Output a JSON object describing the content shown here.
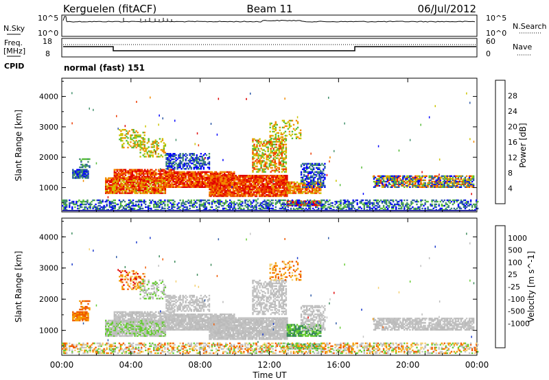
{
  "header": {
    "site": "Kerguelen (fitACF)",
    "beam": "Beam 11",
    "date": "06/Jul/2012"
  },
  "panels": {
    "nsky": {
      "left_label": "N.Sky",
      "right_label": "N.Search",
      "left_ticks": [
        "10^5",
        "10^0"
      ],
      "right_ticks": [
        "10^5",
        "10^0"
      ]
    },
    "freq": {
      "left_label_line1": "Freq.",
      "left_label_line2": "[MHz]",
      "right_label": "Nave",
      "left_ticks": [
        "18",
        "8"
      ],
      "right_ticks": [
        "60",
        "0"
      ]
    },
    "cpid": {
      "label": "CPID",
      "text": "normal (fast) 151"
    }
  },
  "colors": {
    "power": [
      "#0000ff",
      "#2e5aa8",
      "#3f8f6a",
      "#54bb36",
      "#ccc400",
      "#f28a00",
      "#ee3a00",
      "#e00000"
    ],
    "velocity": [
      "#e00000",
      "#f05a00",
      "#f49a00",
      "#f4d070",
      "#bbbbbb",
      "#c4c4c4",
      "#66cc33",
      "#3a8a5a",
      "#2e5aa8",
      "#1a3acc"
    ]
  },
  "chart_data": [
    {
      "type": "heatmap",
      "name": "Power",
      "title": "Power [dB]",
      "ylabel": "Slant Range [km]",
      "xlabel": "Time UT",
      "x_ticks": [
        "00:00",
        "04:00",
        "08:00",
        "12:00",
        "16:00",
        "20:00",
        "00:00"
      ],
      "y_ticks": [
        "1000",
        "2000",
        "3000",
        "4000"
      ],
      "ylim": [
        200,
        4600
      ],
      "xlim_hours": [
        0,
        24
      ],
      "colorbar_ticks": [
        "4",
        "8",
        "12",
        "16",
        "20",
        "24",
        "28"
      ],
      "colorbar_range": [
        0,
        32
      ]
    },
    {
      "type": "heatmap",
      "name": "Velocity",
      "title": "Velocity [m s^-1]",
      "ylabel": "Slant Range [km]",
      "xlabel": "Time UT",
      "x_ticks": [
        "00:00",
        "04:00",
        "08:00",
        "12:00",
        "16:00",
        "20:00",
        "00:00"
      ],
      "y_ticks": [
        "1000",
        "2000",
        "3000",
        "4000"
      ],
      "ylim": [
        200,
        4600
      ],
      "xlim_hours": [
        0,
        24
      ],
      "colorbar_ticks": [
        "1000",
        "500",
        "100",
        "25",
        "-25",
        "-100",
        "-500",
        "-1000"
      ]
    }
  ]
}
